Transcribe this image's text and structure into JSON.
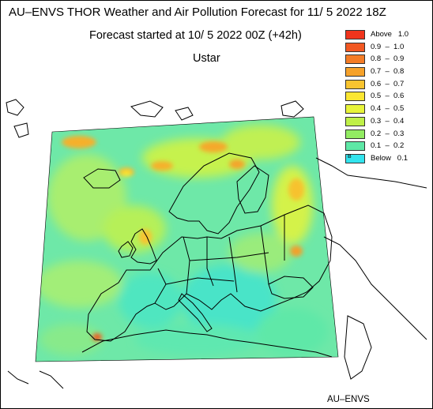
{
  "title": "AU–ENVS THOR Weather and Air Pollution Forecast for 11/ 5 2022  18Z",
  "subtitle": "Forecast started at 10/ 5 2022  00Z (+42h)",
  "variable": "Ustar",
  "credit": "AU–ENVS",
  "legend": [
    {
      "label": "Above   1.0",
      "color": "#f0341c"
    },
    {
      "label": "0.9  –  1.0",
      "color": "#f25822"
    },
    {
      "label": "0.8  –  0.9",
      "color": "#f47c26"
    },
    {
      "label": "0.7  –  0.8",
      "color": "#f6a22b"
    },
    {
      "label": "0.6  –  0.7",
      "color": "#f9c42f"
    },
    {
      "label": "0.5  –  0.6",
      "color": "#fbe632"
    },
    {
      "label": "0.4  –  0.5",
      "color": "#e8f43a"
    },
    {
      "label": "0.3  –  0.4",
      "color": "#bff048"
    },
    {
      "label": "0.2  –  0.3",
      "color": "#92ec62"
    },
    {
      "label": "0.1  –  0.2",
      "color": "#5ee8a6"
    },
    {
      "label": "Below   0.1",
      "color": "#32e4ee",
      "marker": "B"
    }
  ]
}
